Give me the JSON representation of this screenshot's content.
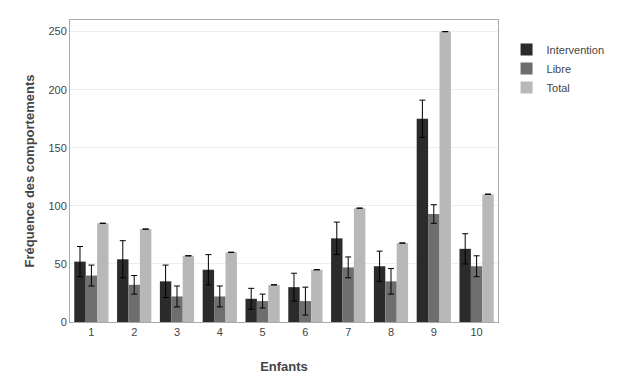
{
  "chart_data": {
    "type": "bar",
    "xlabel": "Enfants",
    "ylabel": "Fréquence des comportements",
    "categories": [
      "1",
      "2",
      "3",
      "4",
      "5",
      "6",
      "7",
      "8",
      "9",
      "10"
    ],
    "series": [
      {
        "name": "Intervention",
        "color": "#2b2b2b",
        "values": [
          52,
          54,
          35,
          45,
          20,
          30,
          72,
          48,
          175,
          63
        ],
        "error": [
          13,
          16,
          14,
          13,
          9,
          12,
          14,
          13,
          16,
          13
        ]
      },
      {
        "name": "Libre",
        "color": "#6e6e6e",
        "values": [
          40,
          32,
          22,
          22,
          18,
          18,
          47,
          35,
          93,
          48
        ],
        "error": [
          9,
          8,
          9,
          9,
          6,
          12,
          9,
          11,
          8,
          9
        ]
      },
      {
        "name": "Total",
        "color": "#b8b8b8",
        "values": [
          85,
          80,
          57,
          60,
          32,
          45,
          98,
          68,
          250,
          110
        ],
        "error": [
          0,
          0,
          0,
          0,
          0,
          0,
          0,
          0,
          0,
          0
        ]
      }
    ],
    "ylim": [
      0,
      260
    ],
    "yticks": [
      0,
      50,
      100,
      150,
      200,
      250
    ],
    "grid": true,
    "legend": "right"
  }
}
